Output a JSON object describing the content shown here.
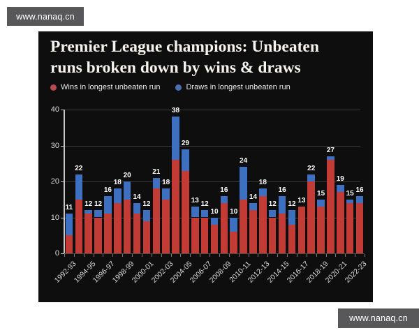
{
  "watermark": {
    "text": "www.nanaq.cn"
  },
  "header": {
    "title_line1": "Premier League champions: Unbeaten",
    "title_line2": "runs broken down by wins & draws"
  },
  "legend": {
    "wins_label": "Wins in longest unbeaten run",
    "draws_label": "Draws in longest unbeaten run"
  },
  "colors": {
    "card_bg": "#0f0e0e",
    "wins": "#c23b34",
    "draws": "#3e70c2",
    "legend_wins_dot": "#b8494f",
    "legend_draws_dot": "#4a6fb5",
    "grid": "#3d3d3d",
    "axis_line": "#c9c9c9",
    "tick_label": "#d9d9d9",
    "x_tick_mark": "#7a7a7a",
    "value_label": "#ffffff",
    "watermark_bg": "#58585a"
  },
  "chart_data": {
    "type": "bar",
    "stacked": true,
    "title": "Premier League champions: Unbeaten runs broken down by wins & draws",
    "xlabel": "",
    "ylabel": "",
    "ylim": [
      0,
      40
    ],
    "yticks": [
      0,
      10,
      20,
      30,
      40
    ],
    "grid": true,
    "legend_position": "top",
    "categories": [
      "1992-93",
      "1993-94",
      "1994-95",
      "1995-96",
      "1996-97",
      "1997-98",
      "1998-99",
      "1999-00",
      "2000-01",
      "2001-02",
      "2002-03",
      "2003-04",
      "2004-05",
      "2005-06",
      "2006-07",
      "2007-08",
      "2008-09",
      "2009-10",
      "2010-11",
      "2011-12",
      "2012-13",
      "2013-14",
      "2014-15",
      "2015-16",
      "2016-17",
      "2017-18",
      "2018-19",
      "2019-20",
      "2020-21",
      "2021-22",
      "2022-23"
    ],
    "x_tick_labels_shown": [
      "1992-93",
      "1994-95",
      "1996-97",
      "1998-99",
      "2000-01",
      "2002-03",
      "2004-05",
      "2006-07",
      "2008-09",
      "2010-11",
      "2012-13",
      "2014-15",
      "2016-17",
      "2018-19",
      "2020-21",
      "2022-23"
    ],
    "series": [
      {
        "name": "Wins in longest unbeaten run",
        "values": [
          5,
          15,
          11,
          10,
          11,
          14,
          15,
          11,
          9,
          18,
          15,
          26,
          23,
          10,
          10,
          8,
          14,
          6,
          15,
          12,
          16,
          10,
          11,
          8,
          13,
          20,
          13,
          26,
          17,
          14,
          14
        ]
      },
      {
        "name": "Draws in longest unbeaten run",
        "values": [
          6,
          7,
          1,
          2,
          5,
          4,
          5,
          3,
          3,
          3,
          3,
          12,
          6,
          3,
          2,
          2,
          2,
          4,
          9,
          2,
          2,
          2,
          5,
          4,
          0,
          2,
          2,
          1,
          2,
          1,
          2
        ]
      }
    ],
    "totals": [
      11,
      22,
      12,
      12,
      16,
      18,
      20,
      14,
      12,
      21,
      18,
      38,
      29,
      13,
      12,
      10,
      16,
      10,
      24,
      14,
      18,
      12,
      16,
      12,
      13,
      22,
      15,
      27,
      19,
      15,
      16
    ]
  }
}
